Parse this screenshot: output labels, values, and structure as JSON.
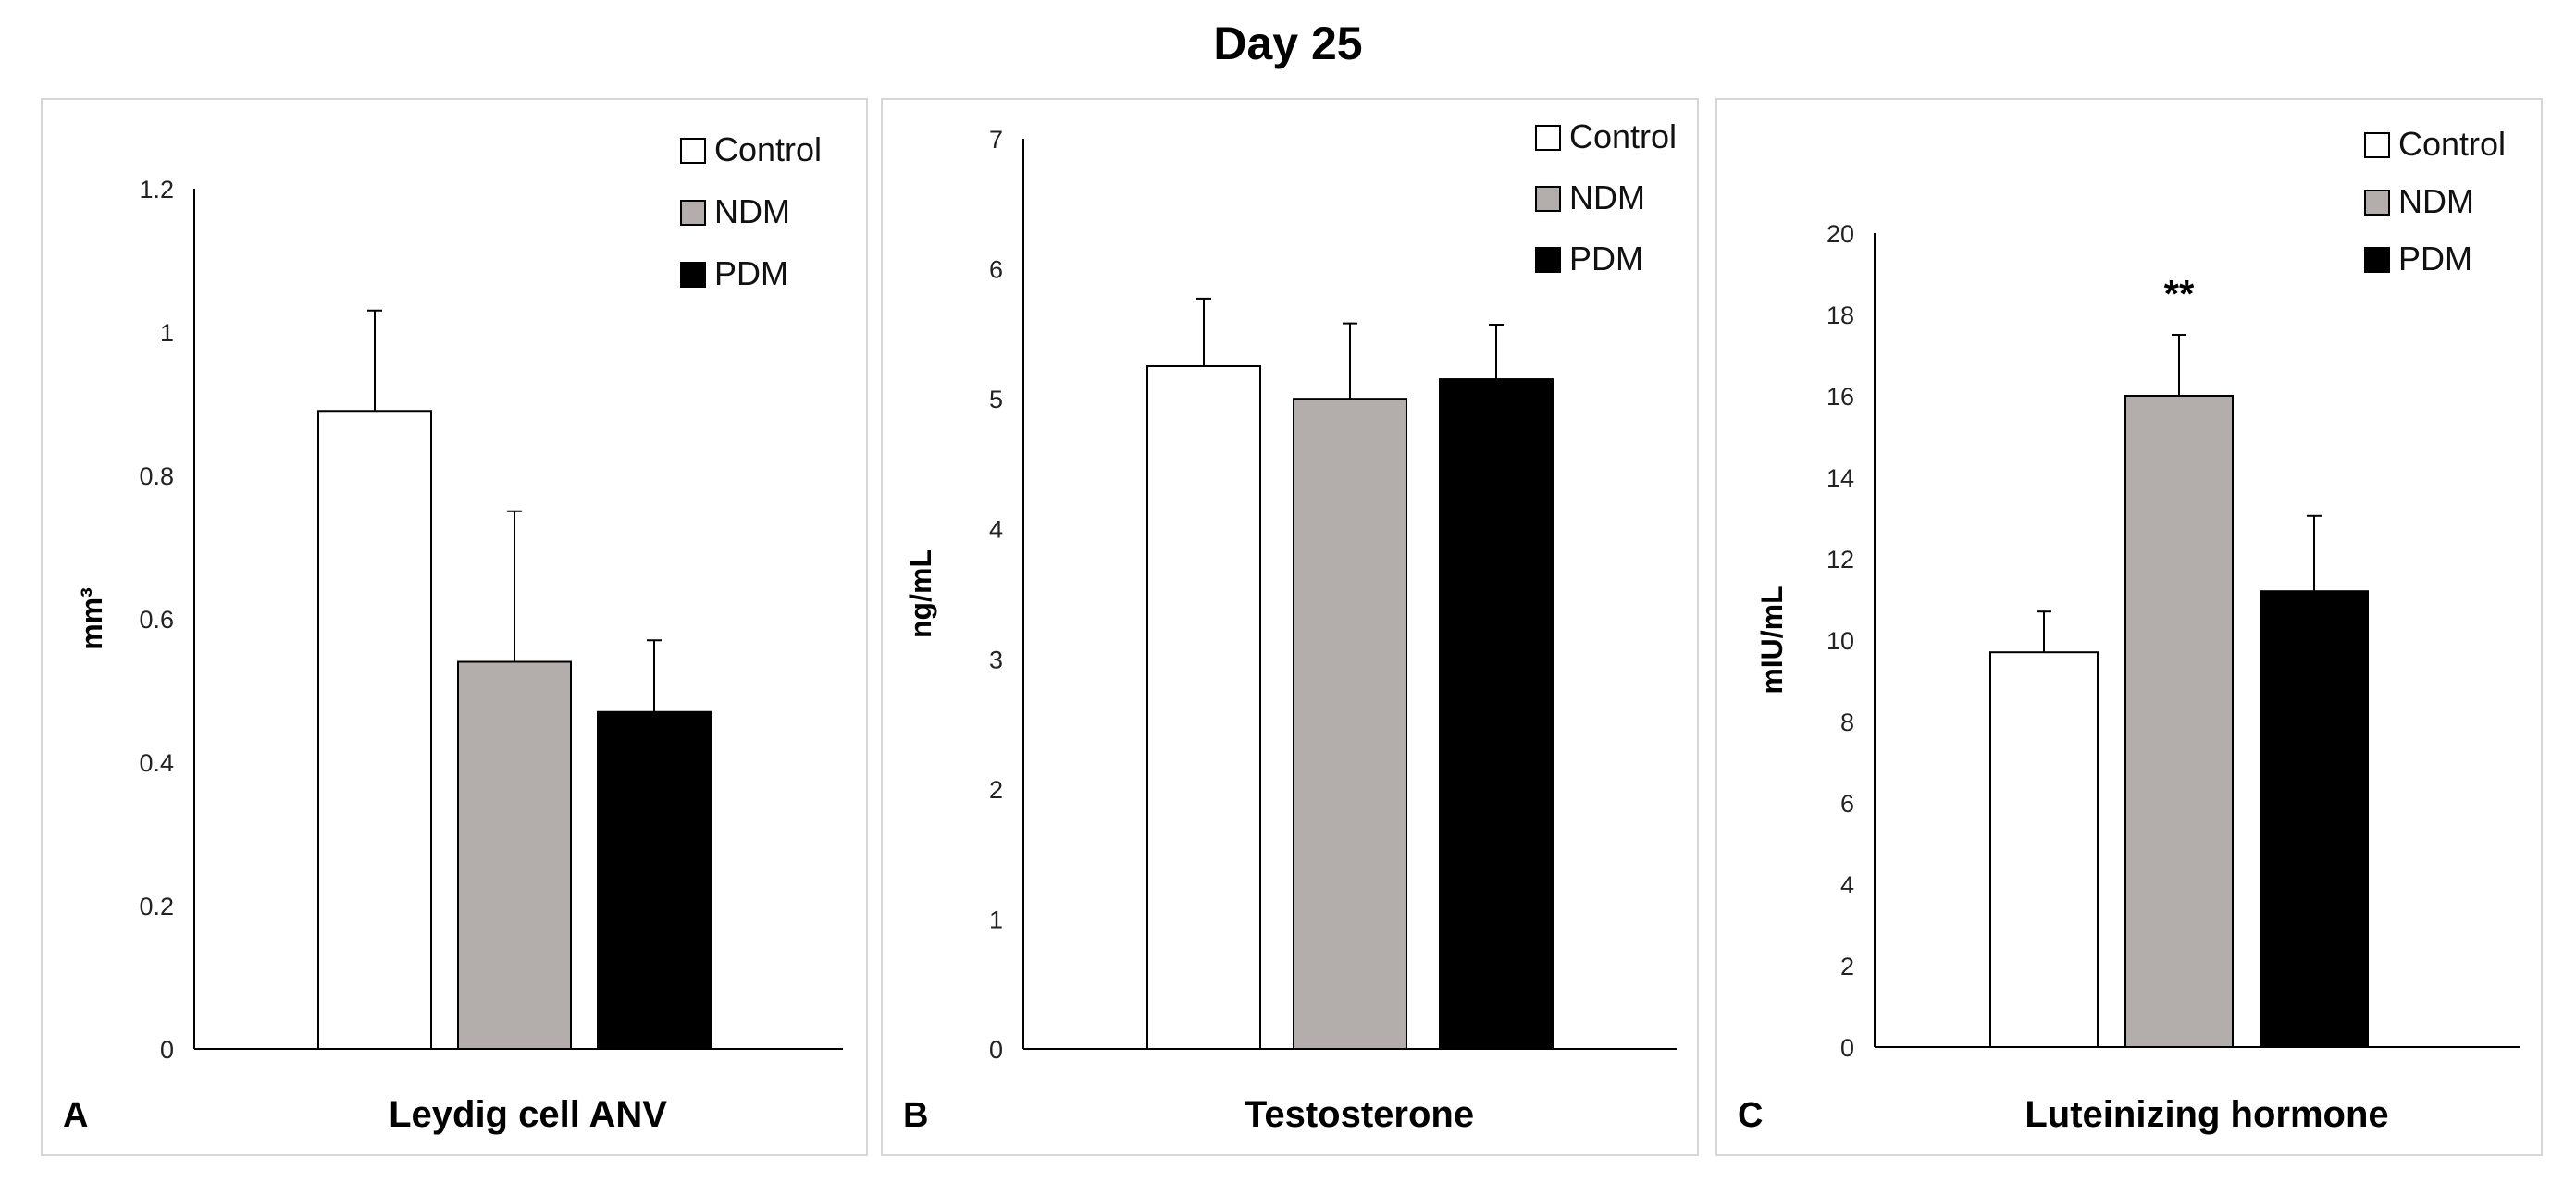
{
  "figure": {
    "title": "Day 25"
  },
  "legend_entries": [
    {
      "name": "Control",
      "color": "#ffffff"
    },
    {
      "name": "NDM",
      "color": "#b3aeab"
    },
    {
      "name": "PDM",
      "color": "#000000"
    }
  ],
  "chart_data": [
    {
      "type": "bar",
      "panel_label": "A",
      "title": "Leydig cell ANV",
      "ylabel": "mm³",
      "ylim": [
        0,
        1.2
      ],
      "yticks": [
        "0",
        "0.2",
        "0.4",
        "0.6",
        "0.8",
        "1",
        "1.2"
      ],
      "categories": [
        "Control",
        "NDM",
        "PDM"
      ],
      "values": [
        0.89,
        0.54,
        0.47
      ],
      "errors": [
        0.14,
        0.21,
        0.1
      ],
      "annotations": [
        "",
        "",
        ""
      ],
      "legend": [
        "Control",
        "NDM",
        "PDM"
      ]
    },
    {
      "type": "bar",
      "panel_label": "B",
      "title": "Testosterone",
      "ylabel": "ng/mL",
      "ylim": [
        0,
        7
      ],
      "yticks": [
        "0",
        "1",
        "2",
        "3",
        "4",
        "5",
        "6",
        "7"
      ],
      "categories": [
        "Control",
        "NDM",
        "PDM"
      ],
      "values": [
        5.25,
        5.0,
        5.15
      ],
      "errors": [
        0.52,
        0.58,
        0.42
      ],
      "annotations": [
        "",
        "",
        ""
      ],
      "legend": [
        "Control",
        "NDM",
        "PDM"
      ]
    },
    {
      "type": "bar",
      "panel_label": "C",
      "title": "Luteinizing hormone",
      "ylabel": "mIU/mL",
      "ylim": [
        0,
        20
      ],
      "yticks": [
        "0",
        "2",
        "4",
        "6",
        "8",
        "10",
        "12",
        "14",
        "16",
        "18",
        "20"
      ],
      "categories": [
        "Control",
        "NDM",
        "PDM"
      ],
      "values": [
        9.7,
        16.0,
        11.2
      ],
      "errors": [
        1.0,
        1.5,
        1.85
      ],
      "annotations": [
        "",
        "**",
        ""
      ],
      "legend": [
        "Control",
        "NDM",
        "PDM"
      ]
    }
  ]
}
